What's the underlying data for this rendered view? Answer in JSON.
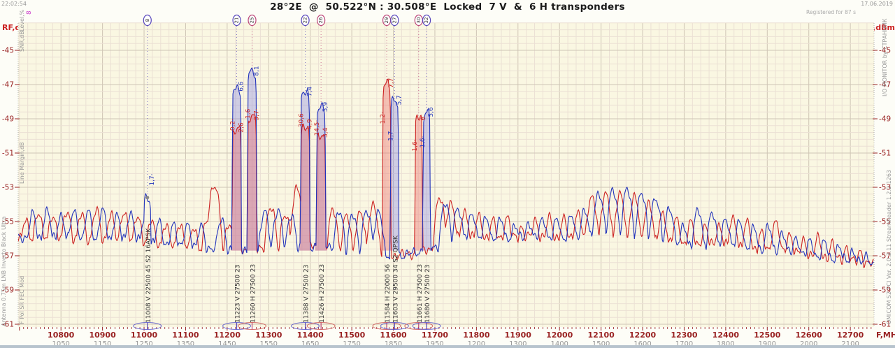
{
  "header": {
    "timestamp": "22:02:54",
    "date": "17.06.2019",
    "registered": "Registered for 87 s",
    "title": "28°2E  @  50.522°N : 30.508°E  Locked  7 V  &  6 H transponders",
    "marker_flag": "8"
  },
  "axis": {
    "y_label_left": "RF,dBm",
    "y_label_right": "RF,dBm",
    "x_label": "F,MHz",
    "y_ticks": [
      -45,
      -47,
      -49,
      -51,
      -53,
      -55,
      -57,
      -59,
      -61
    ],
    "x_ticks": [
      {
        "rf": 10800,
        "if": 1050
      },
      {
        "rf": 10900,
        "if": 1150
      },
      {
        "rf": 11000,
        "if": 1250
      },
      {
        "rf": 11100,
        "if": 1350
      },
      {
        "rf": 11200,
        "if": 1450
      },
      {
        "rf": 11300,
        "if": 1550
      },
      {
        "rf": 11400,
        "if": 1650
      },
      {
        "rf": 11500,
        "if": 1750
      },
      {
        "rf": 11600,
        "if": 1850
      },
      {
        "rf": 11700,
        "if": 1950
      },
      {
        "rf": 11800,
        "if": 1200
      },
      {
        "rf": 11900,
        "if": 1300
      },
      {
        "rf": 12000,
        "if": 1400
      },
      {
        "rf": 12100,
        "if": 1500
      },
      {
        "rf": 12200,
        "if": 1600
      },
      {
        "rf": 12300,
        "if": 1700
      },
      {
        "rf": 12400,
        "if": 1800
      },
      {
        "rf": 12500,
        "if": 1900
      },
      {
        "rf": 12600,
        "if": 2000
      },
      {
        "rf": 12700,
        "if": 2100
      }
    ]
  },
  "side_texts": {
    "left_outer": "Antenna 0.75m   LNB Inverto Black Ultra",
    "left_level": "Level,%",
    "left_snr": "SNR,dB",
    "left_margin": "Line Margin,dB",
    "left_cols": "F   Pol   SR   FEC   Mod",
    "right_monitor": "I/O MONITOR   by  СТРАННИК",
    "right_hw": "OMICOM S2 PCI    Ver. 2.0.3.11    StreamReader 1.2.2.1263"
  },
  "colors": {
    "v": "#5544bb",
    "h": "#bb4477",
    "trace_red": "#cc2222",
    "trace_blue": "#2233bb",
    "fill_blue": "rgba(110,110,230,0.30)",
    "fill_red": "rgba(235,110,110,0.40)",
    "axis": "#992222",
    "muted": "#999999",
    "grid_minor": "#ebe0d4",
    "grid_major": "#cfc5b5",
    "plot_bg": "#faf7e2"
  },
  "chart_data": {
    "type": "line",
    "title": "28°2E @ 50.522°N : 30.508°E Locked 7 V & 6 H transponders",
    "xlabel": "F,MHz",
    "ylabel": "RF,dBm",
    "x_range": [
      10697,
      12757
    ],
    "y_range": [
      -61.2,
      -43.4
    ],
    "grid": true,
    "baseline": [
      [
        10697,
        -55.9
      ],
      [
        11000,
        -56.1
      ],
      [
        11200,
        -56.8
      ],
      [
        11450,
        -56.4
      ],
      [
        11560,
        -57.1
      ],
      [
        11640,
        -56.9
      ],
      [
        11700,
        -56.5
      ],
      [
        11760,
        -55.9
      ],
      [
        12060,
        -55.9
      ],
      [
        12260,
        -56.2
      ],
      [
        12420,
        -56.4
      ],
      [
        12600,
        -56.9
      ],
      [
        12757,
        -57.5
      ]
    ],
    "red_humps": [
      [
        10715,
        -55.0
      ],
      [
        10745,
        -54.5
      ],
      [
        10780,
        -54.6
      ],
      [
        10815,
        -54.4
      ],
      [
        10850,
        -54.6
      ],
      [
        10885,
        -54.4
      ],
      [
        10920,
        -54.6
      ],
      [
        10952,
        -54.4
      ],
      [
        10985,
        -54.7
      ],
      [
        11018,
        -55.0
      ],
      [
        11052,
        -55.2
      ],
      [
        11086,
        -55.1
      ],
      [
        11120,
        -55.3
      ],
      [
        11152,
        -55.0
      ],
      [
        11169,
        -52.8
      ],
      [
        11205,
        -55.1
      ],
      [
        11305,
        -54.1
      ],
      [
        11340,
        -54.5
      ],
      [
        11369,
        -53.1
      ],
      [
        11455,
        -54.4
      ],
      [
        11487,
        -54.7
      ],
      [
        11520,
        -54.4
      ],
      [
        11552,
        -54.0
      ],
      [
        11712,
        -53.7
      ],
      [
        11738,
        -53.9
      ],
      [
        11772,
        -54.4
      ],
      [
        11806,
        -54.7
      ],
      [
        11840,
        -55.0
      ],
      [
        11874,
        -54.8
      ],
      [
        11908,
        -55.3
      ],
      [
        11942,
        -54.9
      ],
      [
        11976,
        -54.8
      ],
      [
        12010,
        -54.9
      ],
      [
        12044,
        -54.5
      ],
      [
        12078,
        -53.5
      ],
      [
        12112,
        -53.4
      ],
      [
        12146,
        -53.5
      ],
      [
        12180,
        -53.6
      ],
      [
        12214,
        -53.9
      ],
      [
        12248,
        -54.5
      ],
      [
        12282,
        -54.9
      ],
      [
        12316,
        -55.1
      ],
      [
        12350,
        -55.3
      ],
      [
        12384,
        -55.2
      ],
      [
        12418,
        -54.8
      ],
      [
        12452,
        -55.1
      ],
      [
        12486,
        -55.7
      ],
      [
        12520,
        -55.0
      ],
      [
        12554,
        -55.7
      ],
      [
        12588,
        -56.1
      ],
      [
        12622,
        -56.0
      ],
      [
        12656,
        -56.3
      ],
      [
        12690,
        -56.5
      ],
      [
        12724,
        -56.7
      ]
    ],
    "blue_humps": [
      [
        10732,
        -54.6
      ],
      [
        10766,
        -54.4
      ],
      [
        10800,
        -54.6
      ],
      [
        10832,
        -54.4
      ],
      [
        10866,
        -54.5
      ],
      [
        10900,
        -54.4
      ],
      [
        10934,
        -54.6
      ],
      [
        10968,
        -54.5
      ],
      [
        11002,
        -54.9
      ],
      [
        11036,
        -55.1
      ],
      [
        11070,
        -55.2
      ],
      [
        11104,
        -55.1
      ],
      [
        11138,
        -55.2
      ],
      [
        11186,
        -54.8
      ],
      [
        11290,
        -54.5
      ],
      [
        11322,
        -54.3
      ],
      [
        11355,
        -54.6
      ],
      [
        11470,
        -54.5
      ],
      [
        11502,
        -54.6
      ],
      [
        11536,
        -54.3
      ],
      [
        11565,
        -54.5
      ],
      [
        11725,
        -54.0
      ],
      [
        11755,
        -54.2
      ],
      [
        11790,
        -54.5
      ],
      [
        11824,
        -54.8
      ],
      [
        11858,
        -54.9
      ],
      [
        11892,
        -55.2
      ],
      [
        11926,
        -55.0
      ],
      [
        11960,
        -54.8
      ],
      [
        11994,
        -54.9
      ],
      [
        12028,
        -54.7
      ],
      [
        12060,
        -54.3
      ],
      [
        12095,
        -53.3
      ],
      [
        12129,
        -53.2
      ],
      [
        12163,
        -53.2
      ],
      [
        12197,
        -53.4
      ],
      [
        12231,
        -53.6
      ],
      [
        12265,
        -54.2
      ],
      [
        12299,
        -55.3
      ],
      [
        12333,
        -54.4
      ],
      [
        12367,
        -54.5
      ],
      [
        12400,
        -54.8
      ],
      [
        12434,
        -55.0
      ],
      [
        12468,
        -55.4
      ],
      [
        12502,
        -55.3
      ],
      [
        12536,
        -55.6
      ],
      [
        12570,
        -55.9
      ],
      [
        12604,
        -56.1
      ],
      [
        12638,
        -56.2
      ],
      [
        12672,
        -56.4
      ],
      [
        12706,
        -56.6
      ],
      [
        12740,
        -56.9
      ]
    ],
    "transponders": [
      {
        "f": 11008,
        "pol": "V",
        "circle": "8",
        "text": "11008 V 22500 45 S2 16APSK",
        "rp": null,
        "bp": [
          -53.6,
          7
        ],
        "fill": false,
        "dot": true,
        "labels": [
          {
            "t": "1,7·",
            "c": "b",
            "db": -52.9,
            "s": 1
          }
        ]
      },
      {
        "f": 11223,
        "pol": "V",
        "circle": "21",
        "text": "11223 V 27500 23",
        "rp": [
          -49.6,
          9
        ],
        "bp": [
          -47.2,
          9
        ],
        "fill": true,
        "labels": [
          {
            "t": "6,6",
            "c": "b",
            "db": -47.4,
            "s": 1
          },
          {
            "t": "2,6",
            "c": "r",
            "db": -49.8,
            "s": 1
          },
          {
            "t": "0,2·",
            "c": "r",
            "db": -49.7,
            "s": -1
          }
        ]
      },
      {
        "f": 11260,
        "pol": "H",
        "circle": "25",
        "text": "11260 H 27500 23",
        "rp": [
          -48.8,
          9
        ],
        "bp": [
          -46.3,
          9
        ],
        "fill": true,
        "labels": [
          {
            "t": "8,1",
            "c": "b",
            "db": -46.5,
            "s": 1
          },
          {
            "t": "3,7·",
            "c": "r",
            "db": -49.1,
            "s": 1
          },
          {
            "t": "1,6·",
            "c": "r",
            "db": -49.0,
            "s": -1
          }
        ]
      },
      {
        "f": 11388,
        "pol": "V",
        "circle": "22",
        "text": "11388 V 27500 23",
        "rp": [
          -49.4,
          9
        ],
        "bp": [
          -47.5,
          9
        ],
        "fill": true,
        "labels": [
          {
            "t": "7,4",
            "c": "b",
            "db": -47.7,
            "s": 1
          },
          {
            "t": "4,9",
            "c": "r",
            "db": -49.6,
            "s": 1
          },
          {
            "t": "30,6·",
            "c": "r",
            "db": -49.5,
            "s": -1
          }
        ]
      },
      {
        "f": 11426,
        "pol": "H",
        "circle": "26",
        "text": "11426 H 27500 23",
        "rp": [
          -49.9,
          9
        ],
        "bp": [
          -48.4,
          9
        ],
        "fill": true,
        "labels": [
          {
            "t": "5,9",
            "c": "b",
            "db": -48.6,
            "s": 1
          },
          {
            "t": "3,4",
            "c": "r",
            "db": -50.1,
            "s": 1
          },
          {
            "t": "14,5·",
            "c": "r",
            "db": -50.0,
            "s": -1
          }
        ]
      },
      {
        "f": 11584,
        "pol": "H",
        "circle": "29",
        "text": "11584 H 22000 56",
        "rp": [
          -47.0,
          8
        ],
        "bp": null,
        "fill": true,
        "labels": [
          {
            "t": "7,7",
            "c": "r",
            "db": -47.2,
            "s": 1
          },
          {
            "t": "1,2·",
            "c": "r",
            "db": -49.3,
            "s": -1
          }
        ]
      },
      {
        "f": 11603,
        "pol": "V",
        "circle": "27",
        "text": "11603 V 29500 34 S2  QPSK",
        "rp": null,
        "bp": [
          -48.0,
          8
        ],
        "fill": true,
        "labels": [
          {
            "t": "5,7",
            "c": "b",
            "db": -48.2,
            "s": 1
          },
          {
            "t": "1,7·",
            "c": "b",
            "db": -50.3,
            "s": -1
          }
        ]
      },
      {
        "f": 11661,
        "pol": "H",
        "circle": "30",
        "text": "11661 H 27500 23",
        "rp": [
          -48.9,
          7
        ],
        "bp": null,
        "fill": true,
        "labels": [
          {
            "t": "6",
            "c": "r",
            "db": -49.1,
            "s": 1
          },
          {
            "t": "1,6·",
            "c": "r",
            "db": -50.9,
            "s": -1
          }
        ]
      },
      {
        "f": 11680,
        "pol": "V",
        "circle": "32",
        "text": "11680 V 27500 23",
        "rp": null,
        "bp": [
          -48.7,
          7
        ],
        "fill": true,
        "labels": [
          {
            "t": "5,6",
            "c": "b",
            "db": -48.9,
            "s": 1
          },
          {
            "t": "1,6·",
            "c": "b",
            "db": -50.7,
            "s": -1
          }
        ]
      }
    ]
  }
}
